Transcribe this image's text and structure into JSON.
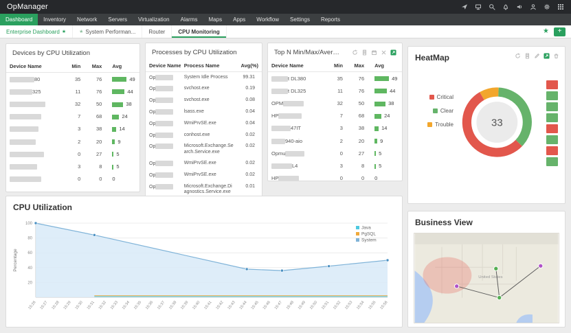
{
  "header": {
    "app_name": "OpManager",
    "icons": [
      "send-icon",
      "remote-display-icon",
      "search-icon",
      "bell-icon",
      "audio-icon",
      "user-icon",
      "gear-icon",
      "apps-grid-icon"
    ]
  },
  "nav": {
    "tabs": [
      {
        "label": "Dashboard",
        "active": true
      },
      {
        "label": "Inventory"
      },
      {
        "label": "Network"
      },
      {
        "label": "Servers"
      },
      {
        "label": "Virtualization"
      },
      {
        "label": "Alarms"
      },
      {
        "label": "Maps"
      },
      {
        "label": "Apps"
      },
      {
        "label": "Workflow"
      },
      {
        "label": "Settings"
      },
      {
        "label": "Reports"
      }
    ]
  },
  "subnav": {
    "items": [
      {
        "label": "Enterprise Dashboard",
        "highlight": true,
        "star_after": true
      },
      {
        "label": "System Performan...",
        "star_before": true
      },
      {
        "label": "Router"
      },
      {
        "label": "CPU Monitoring",
        "active": true
      }
    ],
    "favorite_star": "★",
    "add_button_label": "+"
  },
  "colors": {
    "accent": "#2aa05e",
    "bar_green": "#5fb761",
    "redacted": "#d9d9d9",
    "critical": "#e2574c",
    "clear": "#66b36b",
    "trouble": "#f2a62c"
  },
  "panels": {
    "devices": {
      "title": "Devices by CPU Utilization",
      "columns": [
        "Device Name",
        "Min",
        "Max",
        "Avg"
      ],
      "rows": [
        {
          "pre": "",
          "suf": "80",
          "bw": 36,
          "min": 35,
          "max": 76,
          "avg": 49
        },
        {
          "pre": "",
          "suf": "325",
          "bw": 33,
          "min": 11,
          "max": 76,
          "avg": 44
        },
        {
          "pre": "",
          "suf": "",
          "bw": 52,
          "min": 32,
          "max": 50,
          "avg": 38
        },
        {
          "pre": "",
          "suf": "",
          "bw": 46,
          "min": 7,
          "max": 68,
          "avg": 24
        },
        {
          "pre": "",
          "suf": "",
          "bw": 42,
          "min": 3,
          "max": 38,
          "avg": 14
        },
        {
          "pre": "",
          "suf": "",
          "bw": 38,
          "min": 2,
          "max": 20,
          "avg": 9
        },
        {
          "pre": "",
          "suf": "",
          "bw": 50,
          "min": 0,
          "max": 27,
          "avg": 5
        },
        {
          "pre": "",
          "suf": "",
          "bw": 40,
          "min": 3,
          "max": 8,
          "avg": 5
        },
        {
          "pre": "",
          "suf": "",
          "bw": 46,
          "min": 0,
          "max": 0,
          "avg": 0
        }
      ]
    },
    "processes": {
      "title": "Processes by CPU Utilization",
      "columns": [
        "Device Name",
        "Process Name",
        "Avg(%)"
      ],
      "sort_indicator": "▲",
      "rows": [
        {
          "device_pre": "Op",
          "bw": 26,
          "process": "System Idle Process",
          "avg": "99.31"
        },
        {
          "device_pre": "Op",
          "bw": 26,
          "process": "svchost.exe",
          "avg": "0.19"
        },
        {
          "device_pre": "Op",
          "bw": 26,
          "process": "svchost.exe",
          "avg": "0.08"
        },
        {
          "device_pre": "Op",
          "bw": 26,
          "process": "lsass.exe",
          "avg": "0.04"
        },
        {
          "device_pre": "Op",
          "bw": 26,
          "process": "WmiPrvSE.exe",
          "avg": "0.04"
        },
        {
          "device_pre": "Op",
          "bw": 26,
          "process": "conhost.exe",
          "avg": "0.02"
        },
        {
          "device_pre": "Op",
          "bw": 26,
          "process": "Microsoft.Exchange.Search.Service.exe",
          "avg": "0.02"
        },
        {
          "device_pre": "Op",
          "bw": 26,
          "process": "WmiPrvSE.exe",
          "avg": "0.02"
        },
        {
          "device_pre": "Op",
          "bw": 26,
          "process": "WmiPrvSE.exe",
          "avg": "0.02"
        },
        {
          "device_pre": "Op",
          "bw": 26,
          "process": "Microsoft.Exchange.Diagnostics.Service.exe",
          "avg": "0.01"
        }
      ]
    },
    "topn": {
      "title": "Top N Min/Max/Average CPU Utiliza",
      "columns": [
        "Device Name",
        "Min",
        "Max",
        "Avg"
      ],
      "icons": [
        "refresh-icon",
        "report-icon",
        "calendar-icon",
        "close-icon",
        "expand-icon"
      ],
      "rows": [
        {
          "pre": "",
          "suf": "t DL380",
          "bw": 24,
          "min": 35,
          "max": 76,
          "avg": 49
        },
        {
          "pre": "",
          "suf": "t DL325",
          "bw": 24,
          "min": 11,
          "max": 76,
          "avg": 44
        },
        {
          "pre": "OPM",
          "suf": "",
          "bw": 30,
          "min": 32,
          "max": 50,
          "avg": 38
        },
        {
          "pre": "HP",
          "suf": "",
          "bw": 34,
          "min": 7,
          "max": 68,
          "avg": 24
        },
        {
          "pre": "",
          "suf": "47IT",
          "bw": 28,
          "min": 3,
          "max": 38,
          "avg": 14
        },
        {
          "pre": "",
          "suf": "940-aio",
          "bw": 20,
          "min": 2,
          "max": 20,
          "avg": 9
        },
        {
          "pre": "Opmu",
          "suf": "",
          "bw": 28,
          "min": 0,
          "max": 27,
          "avg": 5
        },
        {
          "pre": "",
          "suf": "L4",
          "bw": 30,
          "min": 3,
          "max": 8,
          "avg": 5
        },
        {
          "pre": "HP",
          "suf": "",
          "bw": 30,
          "min": 0,
          "max": 0,
          "avg": 0
        }
      ]
    },
    "heatmap": {
      "title": "HeatMap",
      "icons": [
        "refresh-icon",
        "report-icon",
        "edit-icon",
        "expand-icon",
        "trash-icon"
      ],
      "cells": [
        "critical",
        "clear",
        "clear",
        "clear",
        "critical",
        "clear",
        "critical",
        "clear"
      ]
    },
    "cpu": {
      "title": "CPU Utilization"
    },
    "business": {
      "title": "Business View",
      "map": {
        "label": "United States",
        "markers": [
          {
            "x": 62,
            "y": 78,
            "color": "#b052c8"
          },
          {
            "x": 120,
            "y": 52,
            "color": "#54ae52"
          },
          {
            "x": 186,
            "y": 48,
            "color": "#b052c8"
          },
          {
            "x": 125,
            "y": 95,
            "color": "#54ae52"
          }
        ],
        "edges": [
          [
            0,
            3
          ],
          [
            1,
            3
          ],
          [
            2,
            3
          ]
        ]
      }
    }
  },
  "chart_data": [
    {
      "type": "pie",
      "variant": "donut",
      "title": "HeatMap",
      "center_label": "33",
      "labels": [
        "Critical",
        "Clear",
        "Trouble"
      ],
      "values": [
        18,
        12,
        3
      ],
      "colors": [
        "#e2574c",
        "#66b36b",
        "#f2a62c"
      ],
      "legend_position": "left",
      "start_angle": -120,
      "draw_order": [
        2,
        1,
        0
      ]
    },
    {
      "type": "area",
      "title": "CPU Utilization",
      "xlabel": "",
      "ylabel": "Percentage",
      "ylim": [
        0,
        100
      ],
      "yticks": [
        20,
        40,
        60,
        80,
        100
      ],
      "x_ticks": [
        "15:26",
        "15:27",
        "15:28",
        "15:29",
        "15:30",
        "15:31",
        "15:32",
        "15:33",
        "15:34",
        "15:35",
        "15:36",
        "15:37",
        "15:38",
        "15:39",
        "15:40",
        "15:41",
        "15:42",
        "15:43",
        "15:44",
        "15:45",
        "15:46",
        "15:47",
        "15:48",
        "15:49",
        "15:50",
        "15:51",
        "15:52",
        "15:53",
        "15:54",
        "15:55",
        "15:56"
      ],
      "legend_position": "top-right",
      "series": [
        {
          "name": "Java",
          "color": "#4ec9e0",
          "points": [
            [
              "15:31",
              1
            ],
            [
              "15:44",
              1
            ],
            [
              "15:56",
              1
            ]
          ]
        },
        {
          "name": "PgSQL",
          "color": "#f0a93b",
          "points": [
            [
              "15:31",
              2
            ],
            [
              "15:44",
              2
            ],
            [
              "15:56",
              2
            ]
          ]
        },
        {
          "name": "System",
          "color": "#7fb3d8",
          "fill": "#d8eaf8",
          "points": [
            [
              "15:26",
              100
            ],
            [
              "15:31",
              84
            ],
            [
              "15:44",
              38
            ],
            [
              "15:47",
              36
            ],
            [
              "15:51",
              42
            ],
            [
              "15:56",
              50
            ]
          ]
        }
      ]
    }
  ]
}
